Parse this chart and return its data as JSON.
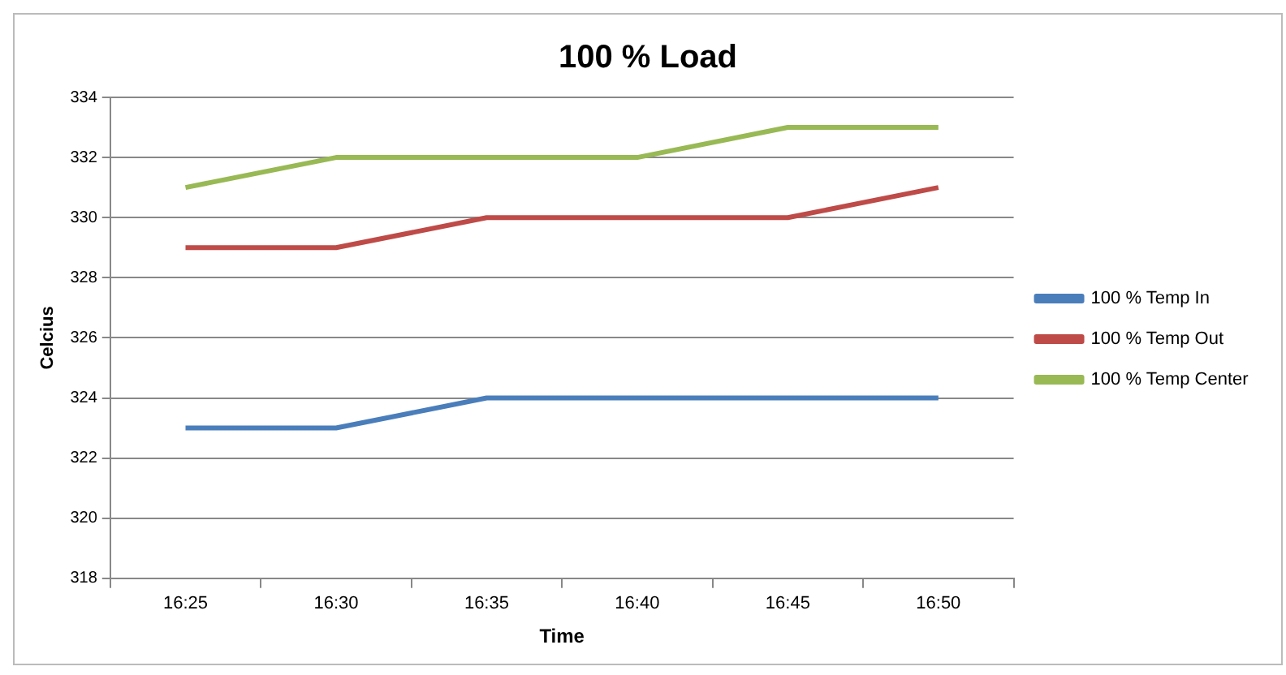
{
  "chart_data": {
    "type": "line",
    "title": "100 % Load",
    "xlabel": "Time",
    "ylabel": "Celcius",
    "categories": [
      "16:25",
      "16:30",
      "16:35",
      "16:40",
      "16:45",
      "16:50"
    ],
    "series": [
      {
        "name": "100 % Temp In",
        "color": "#4a7ebb",
        "values": [
          323,
          323,
          324,
          324,
          324,
          324
        ]
      },
      {
        "name": "100 % Temp Out",
        "color": "#be4b48",
        "values": [
          329,
          329,
          330,
          330,
          330,
          331
        ]
      },
      {
        "name": "100 % Temp Center",
        "color": "#98b954",
        "values": [
          331,
          332,
          332,
          332,
          333,
          333
        ]
      }
    ],
    "ylim": [
      318,
      334
    ],
    "yticks": [
      318,
      320,
      322,
      324,
      326,
      328,
      330,
      332,
      334
    ],
    "grid": "y",
    "legend": "right",
    "marker": "none",
    "line_style": "solid"
  }
}
